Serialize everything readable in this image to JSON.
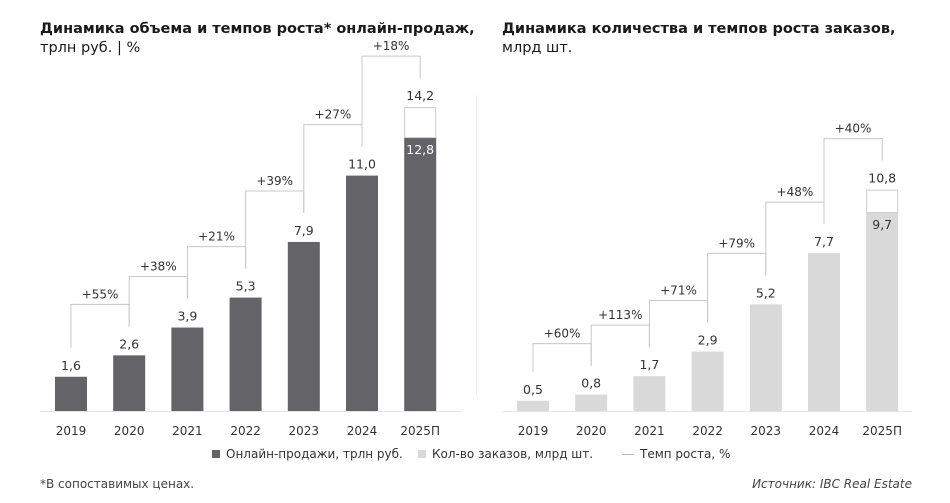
{
  "chart_data": [
    {
      "type": "bar",
      "title": "Динамика объема и темпов роста* онлайн-продаж,",
      "subtitle": "трлн руб. | %",
      "categories": [
        "2019",
        "2020",
        "2021",
        "2022",
        "2023",
        "2024",
        "2025П"
      ],
      "values": [
        1.6,
        2.6,
        3.9,
        5.3,
        7.9,
        11.0,
        12.8
      ],
      "value_labels": [
        "1,6",
        "2,6",
        "3,9",
        "5,3",
        "7,9",
        "11,0",
        "12,8"
      ],
      "forecast_total": {
        "category": "2025П",
        "value": 14.2,
        "label": "14,2"
      },
      "growth": [
        "+55%",
        "+38%",
        "+21%",
        "+39%",
        "+27%",
        "+18%"
      ],
      "series_name": "Онлайн-продажи, трлн руб.",
      "color": "#646468",
      "grid": false
    },
    {
      "type": "bar",
      "title": "Динамика количества и темпов роста заказов,",
      "subtitle": "млрд шт.",
      "categories": [
        "2019",
        "2020",
        "2021",
        "2022",
        "2023",
        "2024",
        "2025П"
      ],
      "values": [
        0.5,
        0.8,
        1.7,
        2.9,
        5.2,
        7.7,
        9.7
      ],
      "value_labels": [
        "0,5",
        "0,8",
        "1,7",
        "2,9",
        "5,2",
        "7,7",
        "9,7"
      ],
      "forecast_total": {
        "category": "2025П",
        "value": 10.8,
        "label": "10,8"
      },
      "growth": [
        "+60%",
        "+113%",
        "+71%",
        "+79%",
        "+48%",
        "+40%"
      ],
      "series_name": "Кол-во заказов, млрд шт.",
      "color": "#d9d9d9",
      "grid": false
    }
  ],
  "legend": {
    "growth_label": "Темп роста, %"
  },
  "footnote": "*В сопоставимых ценах.",
  "source": "Источник: IBC Real Estate"
}
